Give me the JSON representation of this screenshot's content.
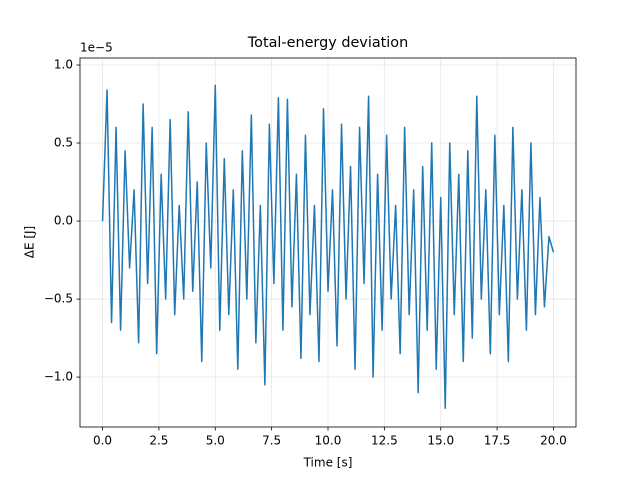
{
  "chart_data": {
    "type": "line",
    "title": "Total-energy deviation",
    "x_label": "Time [s]",
    "y_label": "ΔE [J]",
    "y_offset_label": "1e−5",
    "color": "#1f77b4",
    "grid": true,
    "x": [
      0,
      0.2,
      0.4,
      0.6,
      0.8,
      1,
      1.2,
      1.4,
      1.6,
      1.8,
      2,
      2.2,
      2.4,
      2.6,
      2.8,
      3,
      3.2,
      3.4,
      3.6,
      3.8,
      4,
      4.2,
      4.4,
      4.6,
      4.8,
      5,
      5.2,
      5.4,
      5.6,
      5.8,
      6,
      6.2,
      6.4,
      6.6,
      6.8,
      7,
      7.2,
      7.4,
      7.6,
      7.8,
      8,
      8.2,
      8.4,
      8.6,
      8.8,
      9,
      9.2,
      9.4,
      9.6,
      9.8,
      10,
      10.2,
      10.4,
      10.6,
      10.8,
      11,
      11.2,
      11.4,
      11.6,
      11.8,
      12,
      12.2,
      12.4,
      12.6,
      12.8,
      13,
      13.2,
      13.4,
      13.6,
      13.8,
      14,
      14.2,
      14.4,
      14.6,
      14.8,
      15,
      15.2,
      15.4,
      15.6,
      15.8,
      16,
      16.2,
      16.4,
      16.6,
      16.8,
      17,
      17.2,
      17.4,
      17.6,
      17.8,
      18,
      18.2,
      18.4,
      18.6,
      18.8,
      19,
      19.2,
      19.4,
      19.6,
      19.8,
      20
    ],
    "values": [
      0.0,
      0.84,
      -0.65,
      0.6,
      -0.7,
      0.45,
      -0.3,
      0.2,
      -0.78,
      0.75,
      -0.4,
      0.6,
      -0.85,
      0.3,
      -0.5,
      0.65,
      -0.6,
      0.1,
      -0.5,
      0.7,
      -0.45,
      0.25,
      -0.9,
      0.5,
      -0.3,
      0.87,
      -0.7,
      0.4,
      -0.6,
      0.2,
      -0.95,
      0.45,
      -0.5,
      0.68,
      -0.78,
      0.1,
      -1.05,
      0.62,
      -0.4,
      0.79,
      -0.7,
      0.78,
      -0.55,
      0.3,
      -0.88,
      0.55,
      -0.6,
      0.1,
      -0.9,
      0.72,
      -0.45,
      0.2,
      -0.8,
      0.62,
      -0.5,
      0.35,
      -0.95,
      0.6,
      -0.4,
      0.8,
      -1.0,
      0.3,
      -0.7,
      0.55,
      -0.5,
      0.1,
      -0.85,
      0.6,
      -0.6,
      0.2,
      -1.1,
      0.35,
      -0.7,
      0.5,
      -0.95,
      0.15,
      -1.2,
      0.5,
      -0.6,
      0.3,
      -0.9,
      0.45,
      -0.75,
      0.8,
      -0.5,
      0.2,
      -0.85,
      0.55,
      -0.6,
      0.1,
      -0.9,
      0.6,
      -0.5,
      0.2,
      -0.7,
      0.5,
      -0.6,
      0.15,
      -0.55,
      -0.1,
      -0.2
    ],
    "xlim": [
      -1,
      21
    ],
    "ylim": [
      -1.32,
      1.045
    ],
    "xticks": [
      {
        "value": 0,
        "label": "0.0"
      },
      2.5,
      {
        "value": 5,
        "label": "5.0"
      },
      7.5,
      {
        "value": 10,
        "label": "10.0"
      },
      12.5,
      {
        "value": 15,
        "label": "15.0"
      },
      17.5,
      {
        "value": 20,
        "label": "20.0"
      }
    ],
    "yticks": [
      {
        "value": -1,
        "label": "−1.0"
      },
      {
        "value": -0.5,
        "label": "−0.5"
      },
      {
        "value": 0,
        "label": "0.0"
      },
      {
        "value": 0.5,
        "label": "0.5"
      },
      {
        "value": 1,
        "label": "1.0"
      }
    ]
  }
}
